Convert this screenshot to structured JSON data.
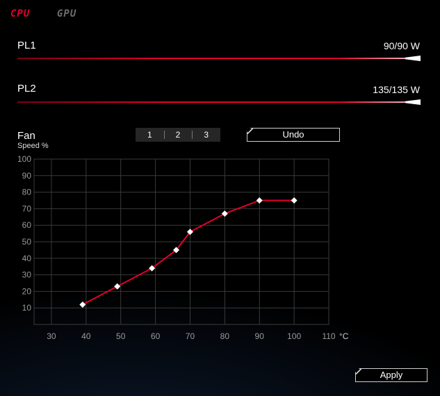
{
  "tabs": {
    "cpu": "CPU",
    "gpu": "GPU"
  },
  "pl1": {
    "label": "PL1",
    "value": "90/90 W",
    "fraction": 1.0
  },
  "pl2": {
    "label": "PL2",
    "value": "135/135 W",
    "fraction": 1.0
  },
  "fan": {
    "title": "Fan",
    "subtitle": "Speed %",
    "profiles": [
      "1",
      "2",
      "3"
    ],
    "undo_label": "Undo",
    "apply_label": "Apply"
  },
  "colors": {
    "accent": "#e4002b",
    "grid": "#3a3a3a",
    "point": "#ffffff"
  },
  "chart_data": {
    "type": "line",
    "xlabel": "°C",
    "ylabel": "Speed %",
    "xlim": [
      25,
      110
    ],
    "ylim": [
      0,
      100
    ],
    "x_ticks": [
      30,
      40,
      50,
      60,
      70,
      80,
      90,
      100,
      110
    ],
    "y_ticks": [
      10,
      20,
      30,
      40,
      50,
      60,
      70,
      80,
      90,
      100
    ],
    "x_tick_labels": [
      "30",
      "40",
      "50",
      "60",
      "70",
      "80",
      "90",
      "100",
      "110"
    ],
    "y_tick_labels": [
      "10",
      "20",
      "30",
      "40",
      "50",
      "60",
      "70",
      "80",
      "90",
      "100"
    ],
    "grid": true,
    "points": [
      {
        "x": 39,
        "y": 12
      },
      {
        "x": 49,
        "y": 23
      },
      {
        "x": 59,
        "y": 34
      },
      {
        "x": 66,
        "y": 45
      },
      {
        "x": 70,
        "y": 56
      },
      {
        "x": 80,
        "y": 67
      },
      {
        "x": 90,
        "y": 75
      },
      {
        "x": 100,
        "y": 75
      }
    ]
  }
}
